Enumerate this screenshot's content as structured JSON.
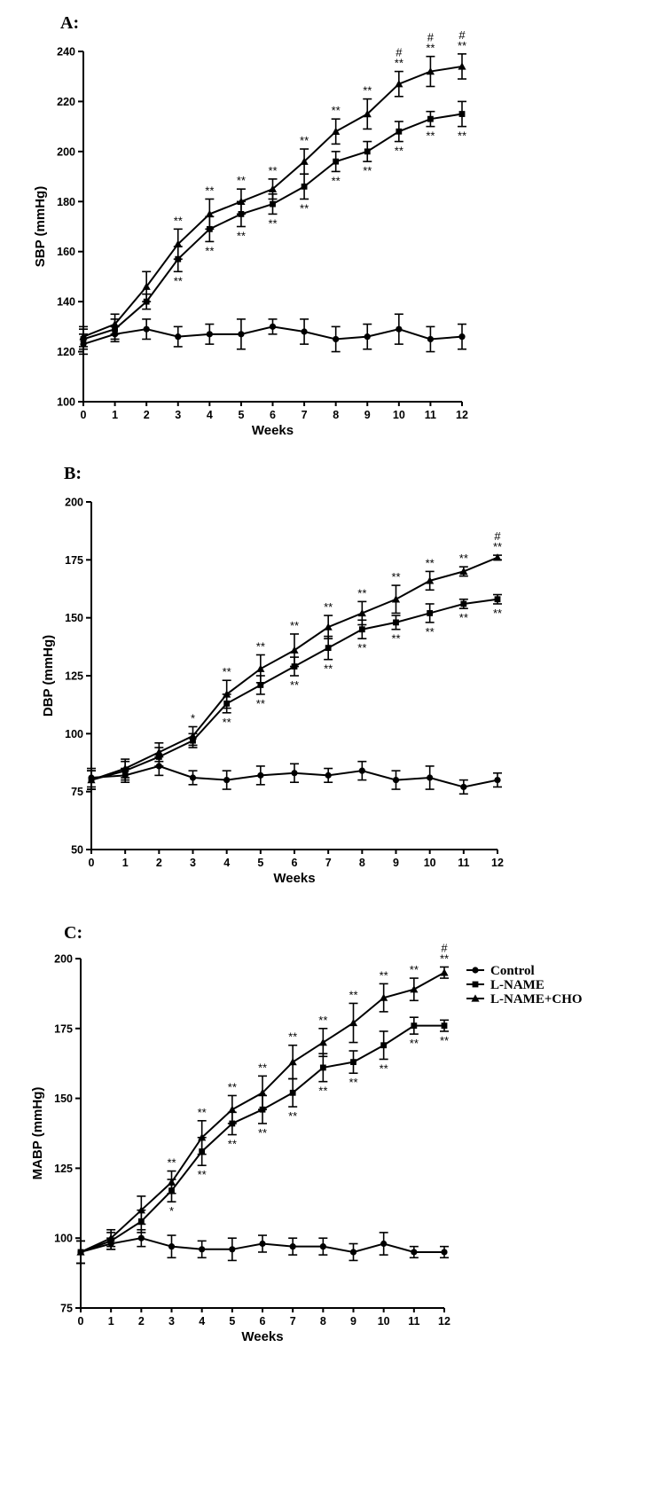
{
  "chart_data": [
    {
      "type": "line",
      "panel_label": "A:",
      "xlabel": "Weeks",
      "ylabel": "SBP (mmHg)",
      "x": [
        0,
        1,
        2,
        3,
        4,
        5,
        6,
        7,
        8,
        9,
        10,
        11,
        12
      ],
      "ylim": [
        100,
        240
      ],
      "yticks": [
        100,
        120,
        140,
        160,
        180,
        200,
        220,
        240
      ],
      "series": [
        {
          "marker": "circle",
          "values": [
            123,
            127,
            129,
            126,
            127,
            127,
            130,
            128,
            125,
            126,
            129,
            125,
            126
          ],
          "err": [
            4,
            3,
            4,
            4,
            4,
            6,
            3,
            5,
            5,
            5,
            6,
            5,
            5
          ]
        },
        {
          "marker": "square",
          "values": [
            125,
            129,
            140,
            157,
            169,
            175,
            179,
            186,
            196,
            200,
            208,
            213,
            215
          ],
          "err": [
            4,
            4,
            3,
            5,
            5,
            5,
            4,
            5,
            4,
            4,
            4,
            3,
            5
          ]
        },
        {
          "marker": "triangle",
          "values": [
            126,
            131,
            146,
            163,
            175,
            180,
            185,
            196,
            208,
            215,
            227,
            232,
            234
          ],
          "err": [
            4,
            4,
            6,
            6,
            6,
            5,
            4,
            5,
            5,
            6,
            5,
            6,
            5
          ]
        }
      ],
      "annotations": [
        {
          "x": 3,
          "series": 2,
          "pos": "above",
          "text": "**"
        },
        {
          "x": 3,
          "series": 1,
          "pos": "below",
          "text": "**"
        },
        {
          "x": 4,
          "series": 2,
          "pos": "above",
          "text": "**"
        },
        {
          "x": 4,
          "series": 1,
          "pos": "below",
          "text": "**"
        },
        {
          "x": 5,
          "series": 2,
          "pos": "above",
          "text": "**"
        },
        {
          "x": 5,
          "series": 1,
          "pos": "below",
          "text": "**"
        },
        {
          "x": 6,
          "series": 2,
          "pos": "above",
          "text": "**"
        },
        {
          "x": 6,
          "series": 1,
          "pos": "below",
          "text": "**"
        },
        {
          "x": 7,
          "series": 2,
          "pos": "above",
          "text": "**"
        },
        {
          "x": 7,
          "series": 1,
          "pos": "below",
          "text": "**"
        },
        {
          "x": 8,
          "series": 2,
          "pos": "above",
          "text": "**"
        },
        {
          "x": 8,
          "series": 1,
          "pos": "below",
          "text": "**"
        },
        {
          "x": 9,
          "series": 2,
          "pos": "above",
          "text": "**"
        },
        {
          "x": 9,
          "series": 1,
          "pos": "below",
          "text": "**"
        },
        {
          "x": 10,
          "series": 2,
          "pos": "above",
          "text": "**"
        },
        {
          "x": 10,
          "series": 2,
          "pos": "above2",
          "text": "#"
        },
        {
          "x": 10,
          "series": 1,
          "pos": "below",
          "text": "**"
        },
        {
          "x": 11,
          "series": 2,
          "pos": "above",
          "text": "**"
        },
        {
          "x": 11,
          "series": 2,
          "pos": "above2",
          "text": "#"
        },
        {
          "x": 11,
          "series": 1,
          "pos": "below",
          "text": "**"
        },
        {
          "x": 12,
          "series": 2,
          "pos": "above",
          "text": "**"
        },
        {
          "x": 12,
          "series": 2,
          "pos": "above2",
          "text": "#"
        },
        {
          "x": 12,
          "series": 1,
          "pos": "below",
          "text": "**"
        }
      ]
    },
    {
      "type": "line",
      "panel_label": "B:",
      "xlabel": "Weeks",
      "ylabel": "DBP (mmHg)",
      "x": [
        0,
        1,
        2,
        3,
        4,
        5,
        6,
        7,
        8,
        9,
        10,
        11,
        12
      ],
      "ylim": [
        50,
        200
      ],
      "yticks": [
        50,
        75,
        100,
        125,
        150,
        175,
        200
      ],
      "series": [
        {
          "marker": "circle",
          "values": [
            81,
            82,
            86,
            81,
            80,
            82,
            83,
            82,
            84,
            80,
            81,
            77,
            80
          ],
          "err": [
            4,
            3,
            4,
            3,
            4,
            4,
            4,
            3,
            4,
            4,
            5,
            3,
            3
          ]
        },
        {
          "marker": "square",
          "values": [
            80,
            84,
            90,
            97,
            113,
            121,
            129,
            137,
            145,
            148,
            152,
            156,
            158
          ],
          "err": [
            4,
            4,
            4,
            3,
            4,
            4,
            4,
            5,
            4,
            3,
            4,
            2,
            2
          ]
        },
        {
          "marker": "triangle",
          "values": [
            80,
            85,
            92,
            99,
            117,
            128,
            136,
            146,
            152,
            158,
            166,
            170,
            176
          ],
          "err": [
            4,
            4,
            4,
            4,
            6,
            6,
            7,
            5,
            5,
            6,
            4,
            2,
            1
          ]
        }
      ],
      "annotations": [
        {
          "x": 3,
          "series": 2,
          "pos": "above",
          "text": "*"
        },
        {
          "x": 4,
          "series": 2,
          "pos": "above",
          "text": "**"
        },
        {
          "x": 4,
          "series": 1,
          "pos": "below",
          "text": "**"
        },
        {
          "x": 5,
          "series": 2,
          "pos": "above",
          "text": "**"
        },
        {
          "x": 5,
          "series": 1,
          "pos": "below",
          "text": "**"
        },
        {
          "x": 6,
          "series": 2,
          "pos": "above",
          "text": "**"
        },
        {
          "x": 6,
          "series": 1,
          "pos": "below",
          "text": "**"
        },
        {
          "x": 7,
          "series": 2,
          "pos": "above",
          "text": "**"
        },
        {
          "x": 7,
          "series": 1,
          "pos": "below",
          "text": "**"
        },
        {
          "x": 8,
          "series": 2,
          "pos": "above",
          "text": "**"
        },
        {
          "x": 8,
          "series": 1,
          "pos": "below",
          "text": "**"
        },
        {
          "x": 9,
          "series": 2,
          "pos": "above",
          "text": "**"
        },
        {
          "x": 9,
          "series": 1,
          "pos": "below",
          "text": "**"
        },
        {
          "x": 10,
          "series": 2,
          "pos": "above",
          "text": "**"
        },
        {
          "x": 10,
          "series": 1,
          "pos": "below",
          "text": "**"
        },
        {
          "x": 11,
          "series": 2,
          "pos": "above",
          "text": "**"
        },
        {
          "x": 11,
          "series": 1,
          "pos": "below",
          "text": "**"
        },
        {
          "x": 12,
          "series": 2,
          "pos": "above",
          "text": "**"
        },
        {
          "x": 12,
          "series": 2,
          "pos": "above2",
          "text": "#"
        },
        {
          "x": 12,
          "series": 1,
          "pos": "below",
          "text": "**"
        }
      ]
    },
    {
      "type": "line",
      "panel_label": "C:",
      "xlabel": "Weeks",
      "ylabel": "MABP (mmHg)",
      "x": [
        0,
        1,
        2,
        3,
        4,
        5,
        6,
        7,
        8,
        9,
        10,
        11,
        12
      ],
      "ylim": [
        75,
        200
      ],
      "yticks": [
        75,
        100,
        125,
        150,
        175,
        200
      ],
      "legend_position": "top-right",
      "series": [
        {
          "name": "Control",
          "marker": "circle",
          "values": [
            95,
            98,
            100,
            97,
            96,
            96,
            98,
            97,
            97,
            95,
            98,
            95,
            95
          ],
          "err": [
            4,
            2,
            3,
            4,
            3,
            4,
            3,
            3,
            3,
            3,
            4,
            2,
            2
          ]
        },
        {
          "name": "L-NAME",
          "marker": "square",
          "values": [
            95,
            99,
            106,
            117,
            131,
            141,
            146,
            152,
            161,
            163,
            169,
            176,
            176
          ],
          "err": [
            4,
            3,
            4,
            4,
            5,
            4,
            5,
            5,
            5,
            4,
            5,
            3,
            2
          ]
        },
        {
          "name": "L-NAME+CHO",
          "marker": "triangle",
          "values": [
            95,
            100,
            110,
            120,
            136,
            146,
            152,
            163,
            170,
            177,
            186,
            189,
            195
          ],
          "err": [
            4,
            3,
            5,
            4,
            6,
            5,
            6,
            6,
            5,
            7,
            5,
            4,
            2
          ]
        }
      ],
      "annotations": [
        {
          "x": 3,
          "series": 2,
          "pos": "above",
          "text": "**"
        },
        {
          "x": 3,
          "series": 1,
          "pos": "below",
          "text": "*"
        },
        {
          "x": 4,
          "series": 2,
          "pos": "above",
          "text": "**"
        },
        {
          "x": 4,
          "series": 1,
          "pos": "below",
          "text": "**"
        },
        {
          "x": 5,
          "series": 2,
          "pos": "above",
          "text": "**"
        },
        {
          "x": 5,
          "series": 1,
          "pos": "below",
          "text": "**"
        },
        {
          "x": 6,
          "series": 2,
          "pos": "above",
          "text": "**"
        },
        {
          "x": 6,
          "series": 1,
          "pos": "below",
          "text": "**"
        },
        {
          "x": 7,
          "series": 2,
          "pos": "above",
          "text": "**"
        },
        {
          "x": 7,
          "series": 1,
          "pos": "below",
          "text": "**"
        },
        {
          "x": 8,
          "series": 2,
          "pos": "above",
          "text": "**"
        },
        {
          "x": 8,
          "series": 1,
          "pos": "below",
          "text": "**"
        },
        {
          "x": 9,
          "series": 2,
          "pos": "above",
          "text": "**"
        },
        {
          "x": 9,
          "series": 1,
          "pos": "below",
          "text": "**"
        },
        {
          "x": 10,
          "series": 2,
          "pos": "above",
          "text": "**"
        },
        {
          "x": 10,
          "series": 1,
          "pos": "below",
          "text": "**"
        },
        {
          "x": 11,
          "series": 2,
          "pos": "above",
          "text": "**"
        },
        {
          "x": 11,
          "series": 1,
          "pos": "below",
          "text": "**"
        },
        {
          "x": 12,
          "series": 2,
          "pos": "above",
          "text": "**"
        },
        {
          "x": 12,
          "series": 2,
          "pos": "above2",
          "text": "#"
        },
        {
          "x": 12,
          "series": 1,
          "pos": "below",
          "text": "**"
        }
      ]
    }
  ]
}
